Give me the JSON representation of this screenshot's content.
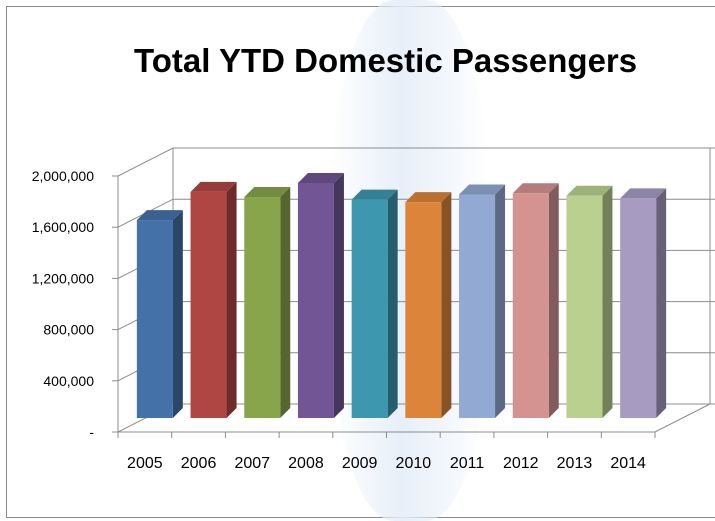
{
  "chart_data": {
    "type": "bar",
    "title": "Total YTD Domestic Passengers",
    "categories": [
      "2005",
      "2006",
      "2007",
      "2008",
      "2009",
      "2010",
      "2011",
      "2012",
      "2013",
      "2014"
    ],
    "values": [
      1640000,
      1860000,
      1820000,
      1930000,
      1800000,
      1780000,
      1840000,
      1850000,
      1830000,
      1810000
    ],
    "colors": [
      "#4472a8",
      "#b04644",
      "#89a54b",
      "#715594",
      "#3d98af",
      "#dc853a",
      "#92a9d4",
      "#d49391",
      "#b9d08f",
      "#a79bc2"
    ],
    "yticks": [
      0,
      400000,
      800000,
      1200000,
      1600000,
      2000000
    ],
    "ytick_labels": [
      "-",
      "400,000",
      "800,000",
      "1,200,000",
      "1,600,000",
      "2,000,000"
    ],
    "ylim": [
      0,
      2000000
    ],
    "xlabel": "",
    "ylabel": "",
    "legend": "none",
    "grid": true,
    "style": "3d-column"
  }
}
